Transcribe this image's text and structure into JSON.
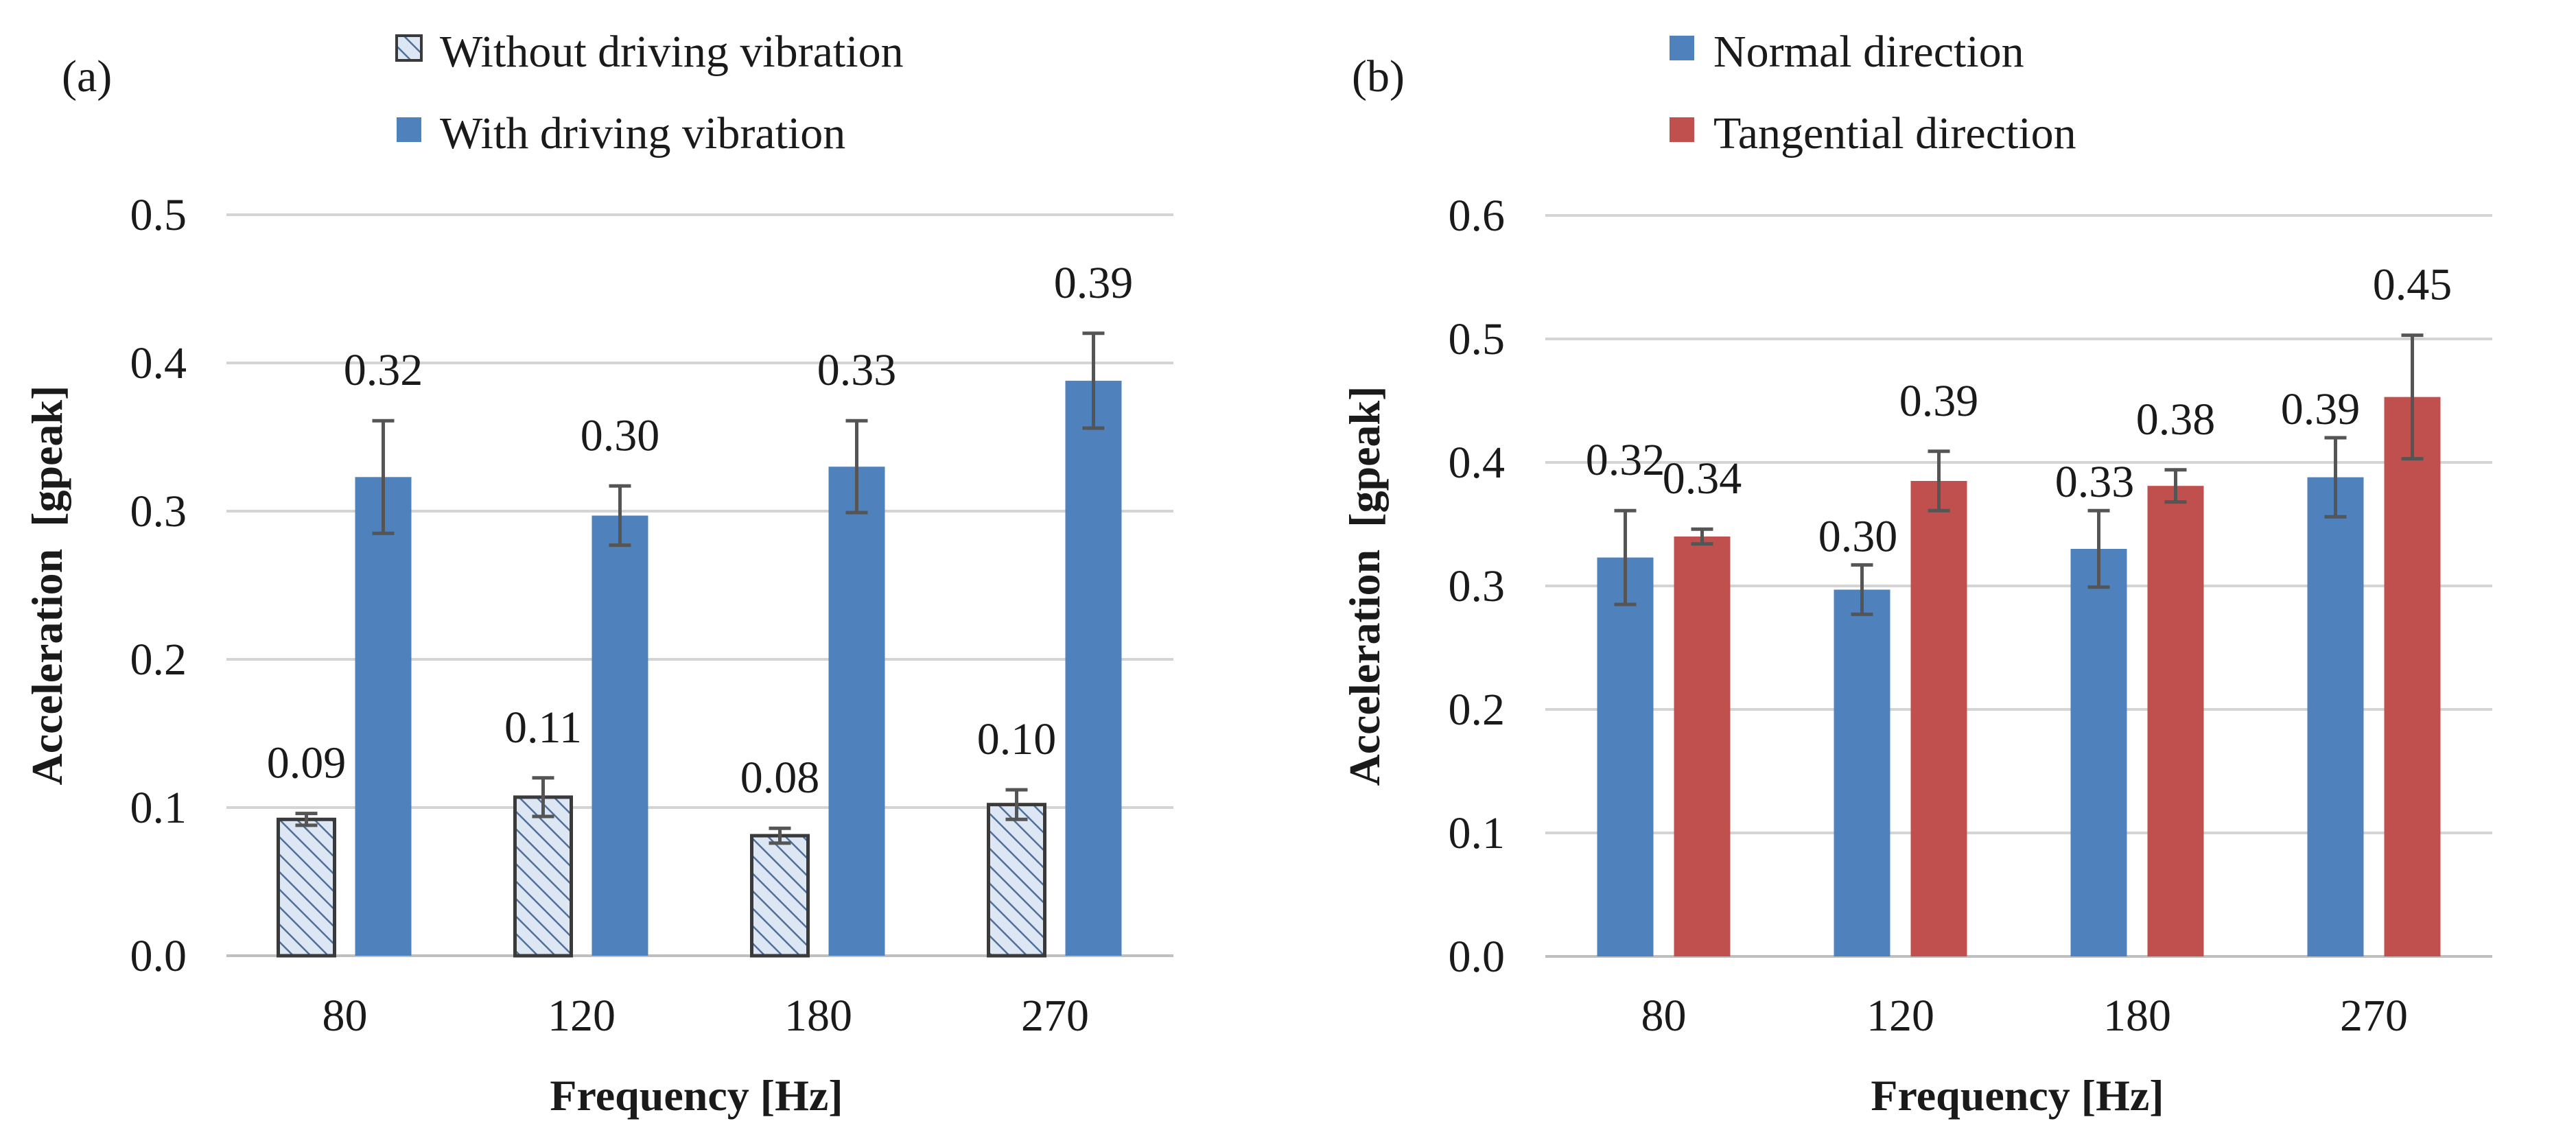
{
  "chart_data": [
    {
      "type": "bar",
      "panel_label": "(a)",
      "categories": [
        "80",
        "120",
        "180",
        "270"
      ],
      "xlabel": "Frequency [Hz]",
      "ylabel": "Acceleration  [gpeak]",
      "ylim": [
        0,
        0.5
      ],
      "yticks": [
        "0.0",
        "0.1",
        "0.2",
        "0.3",
        "0.4",
        "0.5"
      ],
      "grid": true,
      "legend_position": "top",
      "series": [
        {
          "name": "Without driving vibration",
          "color": "#d6e2f2",
          "pattern": "hatched",
          "values": [
            0.092,
            0.107,
            0.081,
            0.102
          ],
          "errors": [
            0.004,
            0.013,
            0.005,
            0.01
          ],
          "labels": [
            "0.09",
            "0.11",
            "0.08",
            "0.10"
          ]
        },
        {
          "name": "With driving vibration",
          "color": "#4f81bd",
          "pattern": "solid",
          "values": [
            0.323,
            0.297,
            0.33,
            0.388
          ],
          "errors": [
            0.038,
            0.02,
            0.031,
            0.032
          ],
          "labels": [
            "0.32",
            "0.30",
            "0.33",
            "0.39"
          ]
        }
      ]
    },
    {
      "type": "bar",
      "panel_label": "(b)",
      "categories": [
        "80",
        "120",
        "180",
        "270"
      ],
      "xlabel": "Frequency [Hz]",
      "ylabel": "Acceleration  [gpeak]",
      "ylim": [
        0,
        0.6
      ],
      "yticks": [
        "0.0",
        "0.1",
        "0.2",
        "0.3",
        "0.4",
        "0.5",
        "0.6"
      ],
      "grid": true,
      "legend_position": "top",
      "series": [
        {
          "name": "Normal direction",
          "color": "#4f81bd",
          "pattern": "solid",
          "values": [
            0.323,
            0.297,
            0.33,
            0.388
          ],
          "errors": [
            0.038,
            0.02,
            0.031,
            0.032
          ],
          "labels": [
            "0.32",
            "0.30",
            "0.33",
            "0.39"
          ]
        },
        {
          "name": "Tangential direction",
          "color": "#c0504d",
          "pattern": "solid",
          "values": [
            0.34,
            0.385,
            0.381,
            0.453
          ],
          "errors": [
            0.006,
            0.024,
            0.013,
            0.05
          ],
          "labels": [
            "0.34",
            "0.39",
            "0.38",
            "0.45"
          ]
        }
      ]
    }
  ]
}
